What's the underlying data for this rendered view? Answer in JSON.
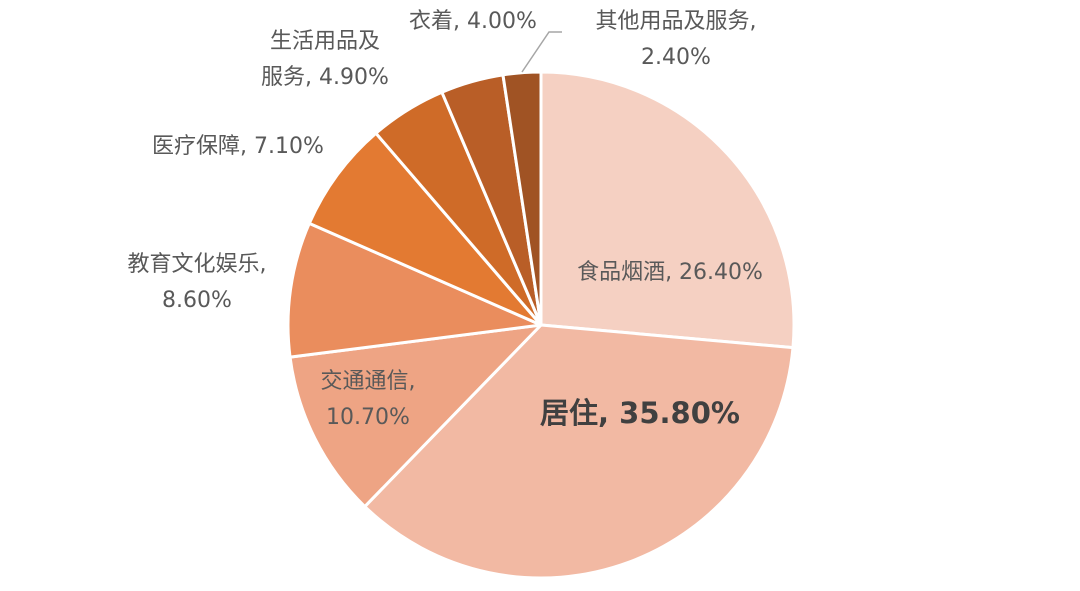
{
  "chart_data": {
    "type": "pie",
    "title": "",
    "start_angle_deg": 0,
    "direction": "clockwise",
    "legend": "none",
    "slices": [
      {
        "name": "食品烟酒",
        "value": 26.4,
        "value_text": "26.40%",
        "color": "#f5d0c2"
      },
      {
        "name": "居住",
        "value": 35.8,
        "value_text": "35.80%",
        "color": "#f2b9a3"
      },
      {
        "name": "交通通信",
        "value": 10.7,
        "value_text": "10.70%",
        "color": "#eea484"
      },
      {
        "name": "教育文化娱乐",
        "value": 8.6,
        "value_text": "8.60%",
        "color": "#ea8d5d"
      },
      {
        "name": "医疗保障",
        "value": 7.1,
        "value_text": "7.10%",
        "color": "#e37a32"
      },
      {
        "name": "生活用品及服务",
        "value": 4.9,
        "value_text": "4.90%",
        "color": "#cf6b28"
      },
      {
        "name": "衣着",
        "value": 4.0,
        "value_text": "4.00%",
        "color": "#b95e27"
      },
      {
        "name": "其他用品及服务",
        "value": 2.4,
        "value_text": "2.40%",
        "color": "#a05324"
      }
    ],
    "labels": [
      {
        "lines": [
          "食品烟酒, 26.40%"
        ]
      },
      {
        "lines": [
          "居住, 35.80%"
        ]
      },
      {
        "lines": [
          "交通通信,",
          "10.70%"
        ]
      },
      {
        "lines": [
          "教育文化娱乐,",
          "8.60%"
        ]
      },
      {
        "lines": [
          "医疗保障, 7.10%"
        ]
      },
      {
        "lines": [
          "生活用品及",
          "服务, 4.90%"
        ]
      },
      {
        "lines": [
          "衣着, 4.00%"
        ]
      },
      {
        "lines": [
          "其他用品及服务,",
          "2.40%"
        ]
      }
    ]
  }
}
